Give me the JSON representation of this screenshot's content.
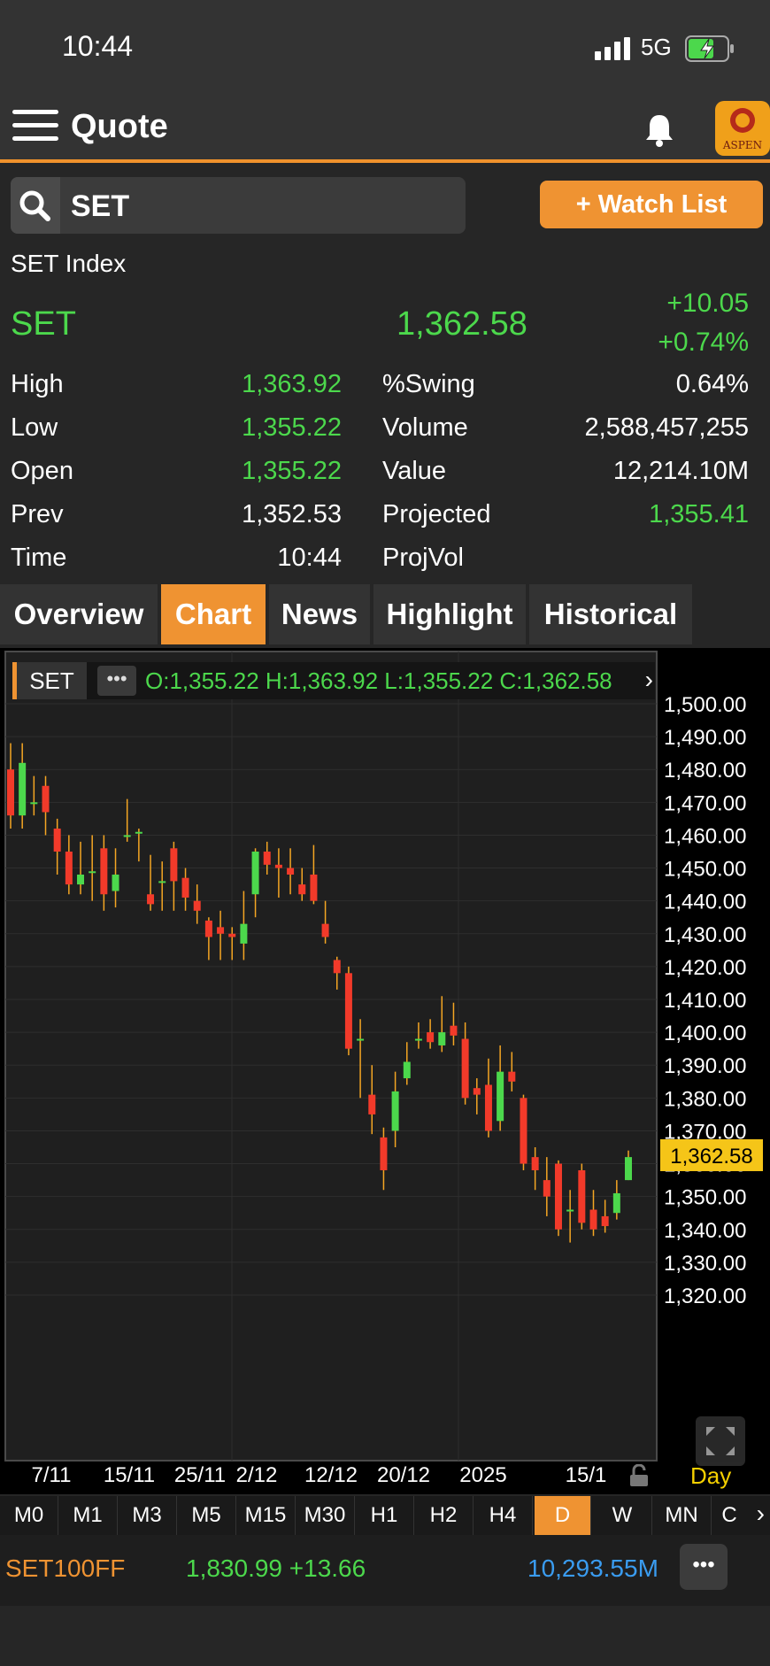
{
  "status_bar": {
    "time": "10:44",
    "network": "5G"
  },
  "header": {
    "title": "Quote",
    "logo_text": "ASPEN"
  },
  "search": {
    "value": "SET",
    "watch_label": "+ Watch List"
  },
  "quote": {
    "name": "SET Index",
    "symbol": "SET",
    "last": "1,362.58",
    "change": "+10.05",
    "pct_change": "+0.74%",
    "left_stats": [
      {
        "label": "High",
        "value": "1,363.92",
        "color": "green"
      },
      {
        "label": "Low",
        "value": "1,355.22",
        "color": "green"
      },
      {
        "label": "Open",
        "value": "1,355.22",
        "color": "green"
      },
      {
        "label": "Prev",
        "value": "1,352.53",
        "color": "white"
      },
      {
        "label": "Time",
        "value": "10:44",
        "color": "white"
      }
    ],
    "right_stats": [
      {
        "label": "%Swing",
        "value": "0.64%",
        "color": "white"
      },
      {
        "label": "Volume",
        "value": "2,588,457,255",
        "color": "white"
      },
      {
        "label": "Value",
        "value": "12,214.10M",
        "color": "white"
      },
      {
        "label": "Projected",
        "value": "1,355.41",
        "color": "green"
      },
      {
        "label": "ProjVol",
        "value": "",
        "color": "white"
      }
    ]
  },
  "tabs": [
    "Overview",
    "Chart",
    "News",
    "Highlight",
    "Historical"
  ],
  "active_tab": "Chart",
  "chart_header": {
    "symbol": "SET",
    "more": "•••",
    "ohlc": "O:1,355.22  H:1,363.92  L:1,355.22  C:1,362.58"
  },
  "chart_data": {
    "type": "candlestick",
    "y_ticks": [
      "1,320.00",
      "1,330.00",
      "1,340.00",
      "1,350.00",
      "1,360.00",
      "1,370.00",
      "1,380.00",
      "1,390.00",
      "1,400.00",
      "1,410.00",
      "1,420.00",
      "1,430.00",
      "1,440.00",
      "1,450.00",
      "1,460.00",
      "1,470.00",
      "1,480.00",
      "1,490.00",
      "1,500.00"
    ],
    "y_range": [
      1315,
      1500
    ],
    "x_labels": [
      "7/11",
      "15/11",
      "25/11",
      "2/12",
      "12/12",
      "20/12",
      "2025",
      "15/1"
    ],
    "last_price_label": "1,362.58",
    "last_price": 1362.58,
    "interval_label": "Day",
    "candles": [
      [
        1480,
        1466,
        1488,
        1462
      ],
      [
        1466,
        1482,
        1488,
        1462
      ],
      [
        1470,
        1470,
        1478,
        1466
      ],
      [
        1475,
        1467,
        1478,
        1460
      ],
      [
        1462,
        1455,
        1465,
        1448
      ],
      [
        1455,
        1445,
        1460,
        1442
      ],
      [
        1445,
        1448,
        1458,
        1442
      ],
      [
        1449,
        1449,
        1460,
        1440
      ],
      [
        1456,
        1442,
        1460,
        1437
      ],
      [
        1443,
        1448,
        1456,
        1438
      ],
      [
        1460,
        1460,
        1471,
        1458
      ],
      [
        1461,
        1461,
        1462,
        1452
      ],
      [
        1442,
        1439,
        1454,
        1437
      ],
      [
        1446,
        1446,
        1452,
        1437
      ],
      [
        1456,
        1446,
        1458,
        1437
      ],
      [
        1447,
        1441,
        1450,
        1437
      ],
      [
        1440,
        1437,
        1445,
        1433
      ],
      [
        1434,
        1429,
        1435,
        1422
      ],
      [
        1432,
        1430,
        1437,
        1422
      ],
      [
        1430,
        1429,
        1432,
        1422
      ],
      [
        1427,
        1433,
        1443,
        1422
      ],
      [
        1442,
        1455,
        1456,
        1435
      ],
      [
        1455,
        1451,
        1458,
        1448
      ],
      [
        1451,
        1450,
        1456,
        1441
      ],
      [
        1450,
        1448,
        1456,
        1442
      ],
      [
        1445,
        1442,
        1450,
        1440
      ],
      [
        1448,
        1440,
        1457,
        1439
      ],
      [
        1433,
        1429,
        1440,
        1427
      ],
      [
        1422,
        1418,
        1423,
        1413
      ],
      [
        1418,
        1395,
        1420,
        1393
      ],
      [
        1398,
        1398,
        1404,
        1380
      ],
      [
        1381,
        1375,
        1390,
        1369
      ],
      [
        1368,
        1358,
        1371,
        1352
      ],
      [
        1370,
        1382,
        1388,
        1365
      ],
      [
        1386,
        1391,
        1397,
        1384
      ],
      [
        1398,
        1398,
        1403,
        1395
      ],
      [
        1400,
        1397,
        1404,
        1395
      ],
      [
        1396,
        1400,
        1411,
        1394
      ],
      [
        1402,
        1399,
        1409,
        1396
      ],
      [
        1398,
        1380,
        1403,
        1378
      ],
      [
        1383,
        1381,
        1386,
        1375
      ],
      [
        1384,
        1370,
        1392,
        1368
      ],
      [
        1373,
        1388,
        1396,
        1370
      ],
      [
        1388,
        1385,
        1394,
        1382
      ],
      [
        1380,
        1360,
        1381,
        1358
      ],
      [
        1362,
        1358,
        1365,
        1352
      ],
      [
        1355,
        1350,
        1362,
        1344
      ],
      [
        1360,
        1340,
        1361,
        1338
      ],
      [
        1346,
        1346,
        1352,
        1336
      ],
      [
        1358,
        1342,
        1360,
        1340
      ],
      [
        1346,
        1340,
        1352,
        1338
      ],
      [
        1344,
        1341,
        1349,
        1339
      ],
      [
        1345,
        1351,
        1355,
        1343
      ],
      [
        1355,
        1362,
        1364,
        1355
      ]
    ]
  },
  "timeframes": [
    "M0",
    "M1",
    "M3",
    "M5",
    "M15",
    "M30",
    "H1",
    "H2",
    "H4",
    "D",
    "W",
    "MN",
    "C"
  ],
  "active_timeframe": "D",
  "ticker": {
    "symbol": "SET100FF",
    "last": "1,830.99 +13.66",
    "value": "10,293.55M",
    "more": "•••"
  }
}
